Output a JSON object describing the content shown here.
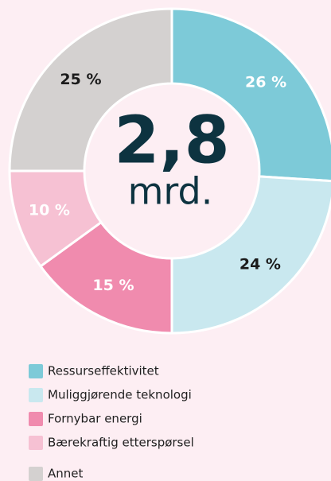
{
  "chart_data": {
    "type": "pie",
    "center_value": "2,8",
    "center_unit": "mrd.",
    "categories": [
      "Ressurseffektivitet",
      "Muliggjørende teknologi",
      "Fornybar energi",
      "Bærekraftig etterspørsel",
      "Annet"
    ],
    "values": [
      26,
      24,
      15,
      10,
      25
    ],
    "value_labels": [
      "26 %",
      "24 %",
      "15 %",
      "10 %",
      "25 %"
    ],
    "colors": [
      "#7dcad8",
      "#c9e8ef",
      "#f08bae",
      "#f6c1d3",
      "#d4d1d0"
    ],
    "label_colors": [
      "#ffffff",
      "#1b1b1b",
      "#ffffff",
      "#ffffff",
      "#1b1b1b"
    ]
  }
}
